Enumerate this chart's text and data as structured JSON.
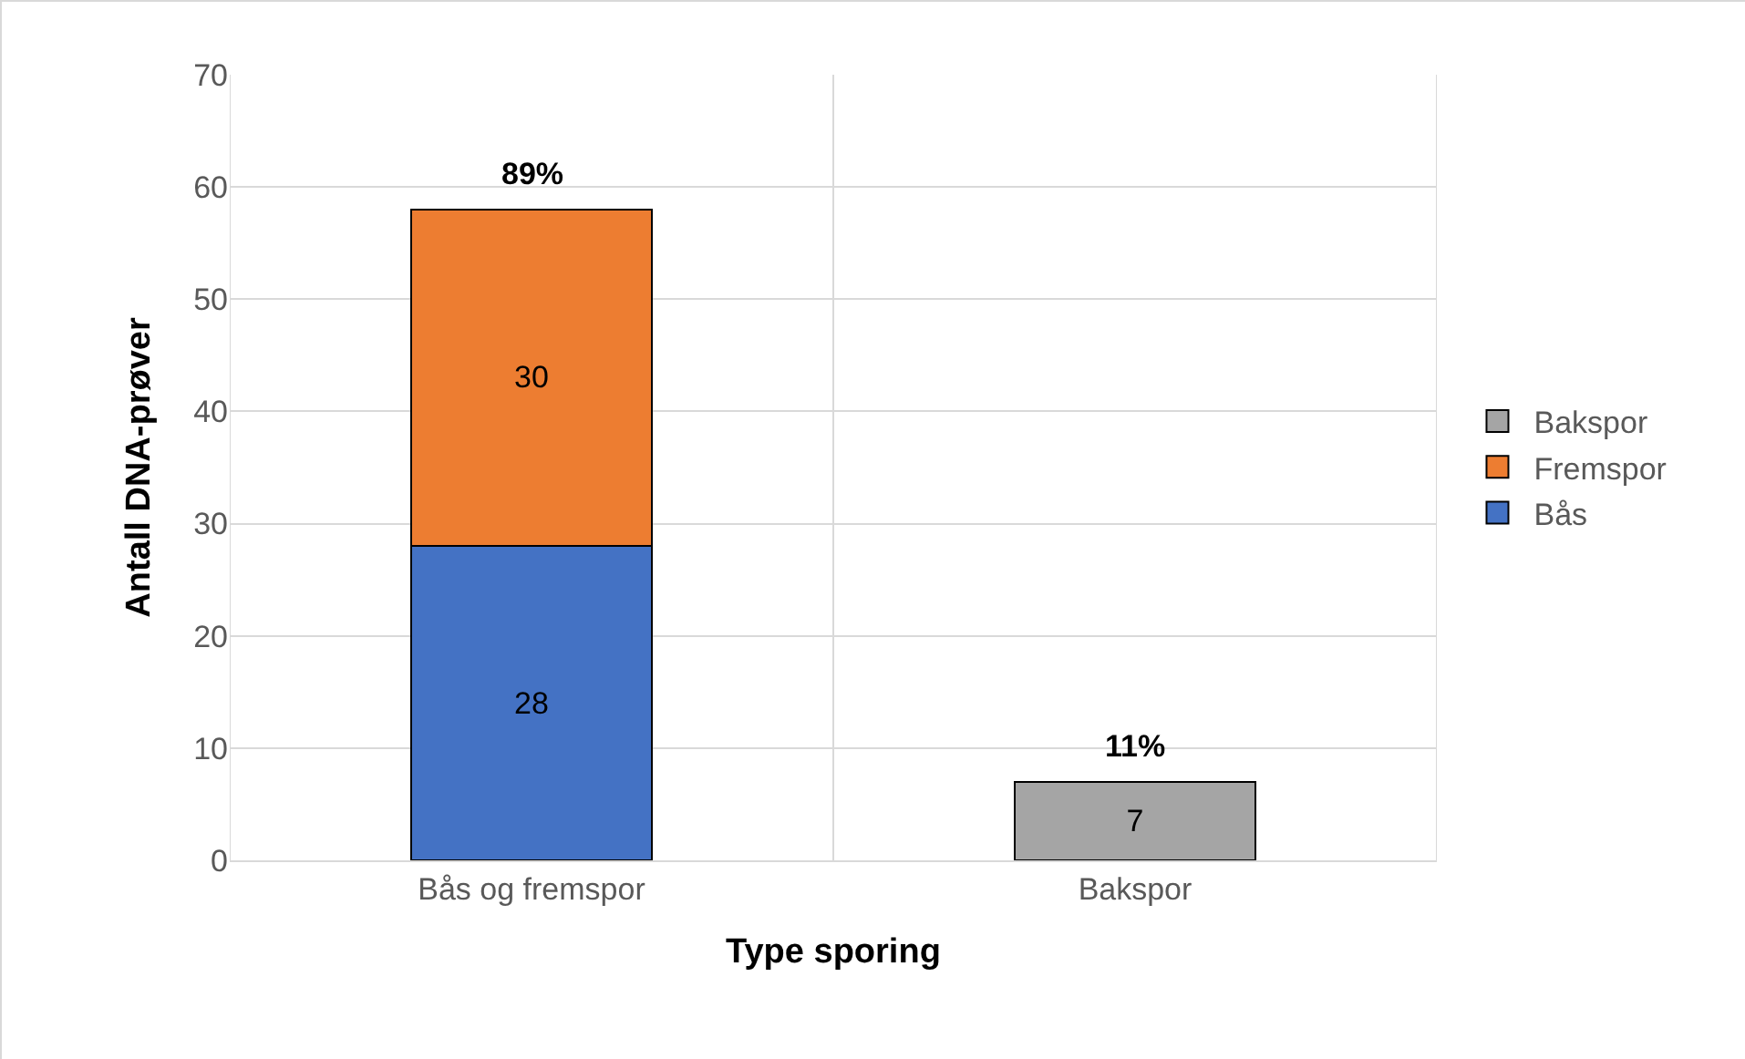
{
  "chart_data": {
    "type": "bar",
    "stacked": true,
    "xlabel": "Type sporing",
    "ylabel": "Antall DNA-prøver",
    "categories": [
      "Bås og fremspor",
      "Bakspor"
    ],
    "series": [
      {
        "name": "Bås",
        "color": "#4472c4",
        "values": [
          28,
          null
        ]
      },
      {
        "name": "Fremspor",
        "color": "#ed7d31",
        "values": [
          30,
          null
        ]
      },
      {
        "name": "Bakspor",
        "color": "#a5a5a5",
        "values": [
          null,
          7
        ]
      }
    ],
    "annotations": [
      {
        "text": "89%",
        "x": "Bås og fremspor",
        "y": 58
      },
      {
        "text": "11%",
        "x": "Bakspor",
        "y": 7
      }
    ],
    "data_labels": true,
    "ylim": [
      0,
      70
    ],
    "yticks": [
      0,
      10,
      20,
      30,
      40,
      50,
      60,
      70
    ],
    "grid": true,
    "legend": "right"
  }
}
